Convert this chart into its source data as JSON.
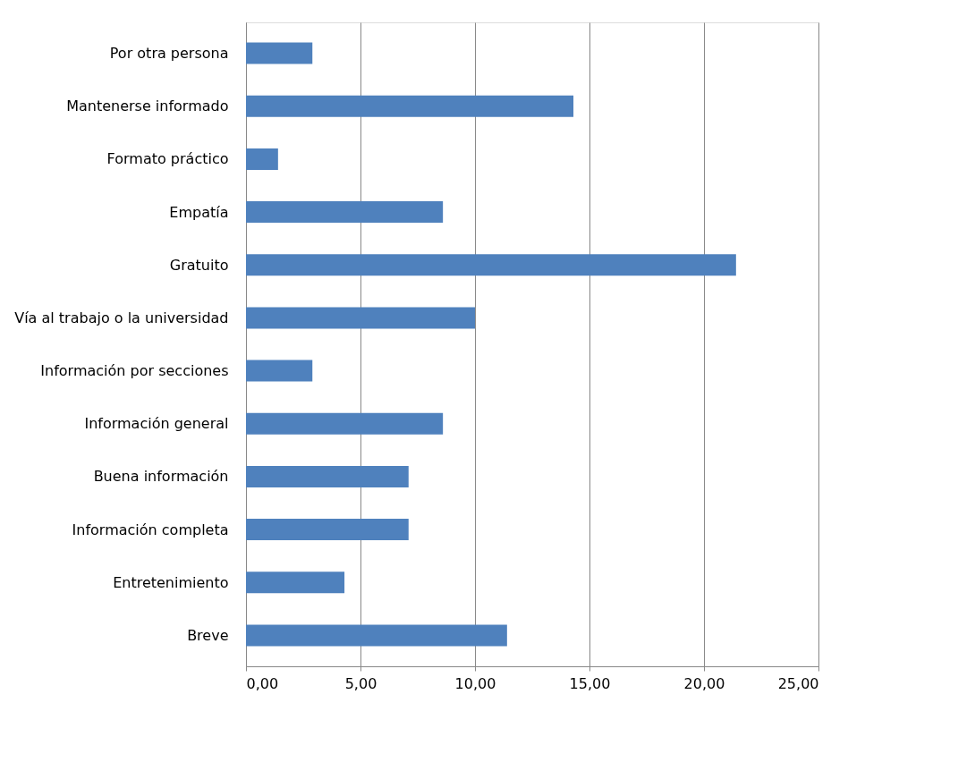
{
  "chart_data": {
    "type": "bar",
    "orientation": "horizontal",
    "categories": [
      "Por otra persona",
      "Mantenerse informado",
      "Formato práctico",
      "Empatía",
      "Gratuito",
      "Vía al trabajo o la universidad",
      "Información por secciones",
      "Información general",
      "Buena información",
      "Información completa",
      "Entretenimiento",
      "Breve"
    ],
    "values": [
      2.9,
      14.3,
      1.4,
      8.6,
      21.4,
      10.0,
      2.9,
      8.6,
      7.1,
      7.1,
      4.3,
      11.4
    ],
    "color": "#4f81bd",
    "xlim": [
      0,
      25
    ],
    "xticks": [
      {
        "value": 0,
        "label": "0,00"
      },
      {
        "value": 5,
        "label": "5,00"
      },
      {
        "value": 10,
        "label": "10,00"
      },
      {
        "value": 15,
        "label": "15,00"
      },
      {
        "value": 20,
        "label": "20,00"
      },
      {
        "value": 25,
        "label": "25,00"
      }
    ],
    "grid": "x"
  }
}
